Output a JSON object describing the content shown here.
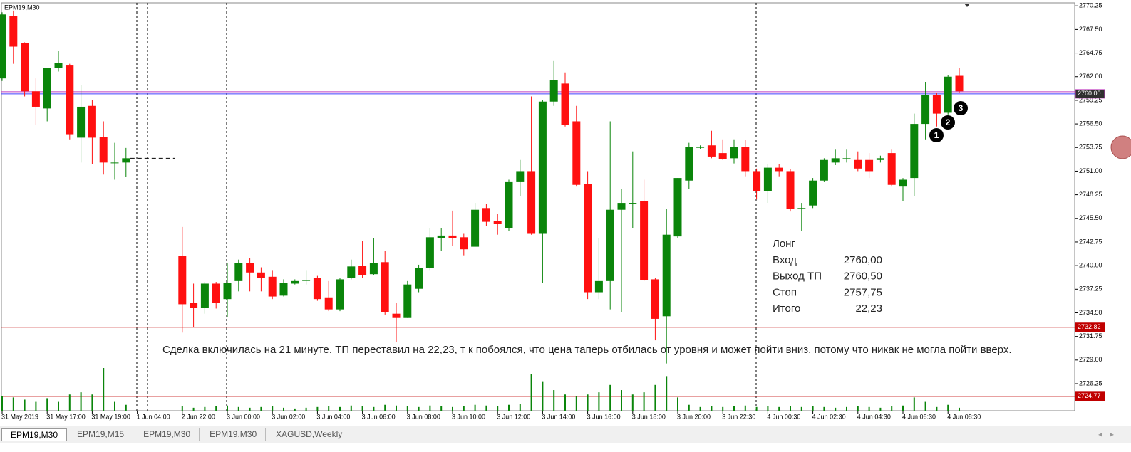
{
  "symbol": "EPM19,M30",
  "tabs": [
    "EPM19,M30",
    "EPM19,M15",
    "EPM19,M30",
    "EPM19,M30",
    "XAGUSD,Weekly"
  ],
  "trade_info": {
    "title": "Лонг",
    "rows": [
      [
        "Вход",
        "2760,00"
      ],
      [
        "Выход ТП",
        "2760,50"
      ],
      [
        "Стоп",
        "2757,75"
      ],
      [
        "Итого",
        "22,23"
      ]
    ]
  },
  "note": "Сделка включилась на 21 минуте. ТП переставил на 22,23, т к побоялся, что цена таперь отбилась от уровня и может пойти вниз, потому что никак не могла пойти вверх.",
  "markers": [
    "1",
    "2",
    "3"
  ],
  "chart_data": {
    "type": "candlestick",
    "up_color": "#0a850a",
    "down_color": "#ff1010",
    "categories": [
      "31 May 2019",
      null,
      null,
      null,
      "31 May 17:00",
      null,
      null,
      null,
      "31 May 19:00",
      null,
      null,
      null,
      "1 Jun 04:00",
      null,
      null,
      null,
      "2 Jun 22:00",
      null,
      null,
      null,
      "3 Jun 00:00",
      null,
      null,
      null,
      "3 Jun 02:00",
      null,
      null,
      null,
      "3 Jun 04:00",
      null,
      null,
      null,
      "3 Jun 06:00",
      null,
      null,
      null,
      "3 Jun 08:00",
      null,
      null,
      null,
      "3 Jun 10:00",
      null,
      null,
      null,
      "3 Jun 12:00",
      null,
      null,
      null,
      "3 Jun 14:00",
      null,
      null,
      null,
      "3 Jun 16:00",
      null,
      null,
      null,
      "3 Jun 18:00",
      null,
      null,
      null,
      "3 Jun 20:00",
      null,
      null,
      null,
      "3 Jun 22:30",
      null,
      null,
      null,
      "4 Jun 00:30",
      null,
      null,
      null,
      "4 Jun 02:30",
      null,
      null,
      null,
      "4 Jun 04:30",
      null,
      null,
      null,
      "4 Jun 06:30",
      null,
      null,
      null,
      "4 Jun 08:30",
      null
    ],
    "open": [
      2761.8,
      2769.1,
      2765.9,
      2760.3,
      2758.3,
      2763.0,
      2763.3,
      2754.9,
      2758.6,
      2755.0,
      2752.0,
      2752.0,
      null,
      null,
      null,
      null,
      2741.1,
      2735.7,
      2735.1,
      2737.9,
      2736.1,
      2738.2,
      2740.3,
      2739.2,
      2738.7,
      2736.5,
      2737.9,
      2738.3,
      2738.6,
      2736.3,
      2734.9,
      2738.6,
      2740.0,
      2739.0,
      2740.4,
      2734.4,
      2733.9,
      2737.3,
      2739.7,
      2743.2,
      2743.5,
      2743.3,
      2742.2,
      2746.7,
      2745.2,
      2744.4,
      2749.8,
      2751.0,
      2743.7,
      2759.1,
      2761.2,
      2756.8,
      2749.5,
      2736.9,
      2738.2,
      2746.5,
      2747.3,
      2747.5,
      2738.4,
      2734.1,
      2743.4,
      2749.9,
      2753.8,
      2754.0,
      2753.1,
      2752.5,
      2753.8,
      2751.0,
      2748.7,
      2751.4,
      2751.0,
      2746.6,
      2747.0,
      2749.9,
      2752.0,
      2752.5,
      2752.3,
      2752.3,
      2752.3,
      2753.1,
      2749.2,
      2750.2,
      2756.5,
      2759.9,
      2757.8,
      2762.1
    ],
    "high": [
      2769.5,
      2769.7,
      2766.0,
      2761.8,
      2763.0,
      2765.0,
      2763.5,
      2761.0,
      2759.3,
      2756.8,
      2754.3,
      2753.7,
      null,
      null,
      null,
      null,
      2744.5,
      2737.9,
      2738.1,
      2738.1,
      2740.3,
      2740.7,
      2740.9,
      2739.8,
      2739.4,
      2738.4,
      2738.4,
      2739.4,
      2738.8,
      2738.2,
      2738.6,
      2740.7,
      2742.9,
      2743.2,
      2741.7,
      2735.7,
      2738.2,
      2740.1,
      2744.4,
      2744.4,
      2746.4,
      2743.7,
      2747.3,
      2747.2,
      2746.0,
      2750.0,
      2752.3,
      2759.7,
      2759.3,
      2763.9,
      2762.5,
      2758.6,
      2751.0,
      2743.2,
      2756.8,
      2748.9,
      2753.3,
      2750.0,
      2738.6,
      2746.6,
      2750.2,
      2754.3,
      2754.0,
      2755.7,
      2754.7,
      2754.7,
      2754.6,
      2751.3,
      2751.8,
      2751.8,
      2751.2,
      2747.3,
      2750.2,
      2752.5,
      2753.5,
      2753.5,
      2753.3,
      2753.1,
      2752.8,
      2753.5,
      2750.2,
      2757.7,
      2761.4,
      2760.1,
      2762.2,
      2763.0
    ],
    "low": [
      2761.5,
      2763.5,
      2759.7,
      2756.4,
      2756.8,
      2762.6,
      2754.7,
      2752.0,
      2751.8,
      2750.6,
      2750.0,
      2750.3,
      null,
      null,
      null,
      null,
      2732.2,
      2732.8,
      2734.4,
      2735.0,
      2734.0,
      2737.0,
      2737.0,
      2737.0,
      2736.1,
      2736.4,
      2737.8,
      2737.8,
      2735.9,
      2734.7,
      2734.7,
      2738.4,
      2738.6,
      2738.9,
      2734.3,
      2731.1,
      2733.9,
      2736.9,
      2739.4,
      2741.7,
      2742.3,
      2741.2,
      2742.2,
      2744.6,
      2743.6,
      2744.0,
      2748.1,
      2743.6,
      2738.0,
      2758.6,
      2756.2,
      2749.2,
      2736.1,
      2736.1,
      2734.9,
      2734.6,
      2744.4,
      2738.2,
      2731.3,
      2728.6,
      2743.2,
      2748.9,
      2753.6,
      2752.5,
      2752.3,
      2751.9,
      2750.4,
      2747.7,
      2747.3,
      2750.4,
      2746.3,
      2744.0,
      2746.7,
      2749.8,
      2751.7,
      2752.0,
      2751.0,
      2750.2,
      2752.0,
      2749.2,
      2747.5,
      2748.1,
      2754.7,
      2756.2,
      2757.6,
      2760.1
    ],
    "close": [
      2769.25,
      2765.5,
      2760.3,
      2758.5,
      2763.0,
      2763.6,
      2755.3,
      2758.5,
      2754.9,
      2752.0,
      2752.0,
      2752.5,
      null,
      null,
      null,
      null,
      2735.5,
      2735.1,
      2737.9,
      2735.7,
      2738.0,
      2740.3,
      2739.2,
      2738.6,
      2736.4,
      2738.0,
      2738.2,
      2738.3,
      2736.1,
      2734.9,
      2738.4,
      2739.9,
      2738.9,
      2740.3,
      2734.6,
      2733.9,
      2737.8,
      2739.7,
      2743.3,
      2743.5,
      2743.2,
      2741.9,
      2746.5,
      2745.1,
      2744.9,
      2749.8,
      2751.0,
      2743.7,
      2759.1,
      2761.6,
      2756.4,
      2749.4,
      2736.9,
      2738.2,
      2746.5,
      2747.3,
      2747.3,
      2738.3,
      2733.8,
      2743.6,
      2750.2,
      2753.8,
      2753.8,
      2752.7,
      2752.4,
      2753.8,
      2751.0,
      2748.7,
      2751.4,
      2751.0,
      2746.6,
      2746.7,
      2749.9,
      2752.3,
      2752.5,
      2752.5,
      2751.3,
      2751.0,
      2752.5,
      2749.4,
      2750.0,
      2756.5,
      2759.9,
      2757.7,
      2762.0,
      2760.3
    ],
    "volumes": [
      20,
      18,
      15,
      12,
      17,
      12,
      22,
      25,
      22,
      58,
      12,
      8,
      null,
      null,
      null,
      null,
      6,
      4,
      5,
      6,
      7,
      5,
      4,
      5,
      6,
      4,
      3,
      4,
      5,
      6,
      5,
      7,
      6,
      5,
      8,
      7,
      6,
      5,
      7,
      6,
      5,
      6,
      8,
      7,
      6,
      8,
      9,
      50,
      40,
      28,
      22,
      20,
      22,
      25,
      35,
      28,
      22,
      25,
      35,
      47,
      18,
      8,
      5,
      6,
      5,
      6,
      7,
      5,
      6,
      5,
      6,
      5,
      6,
      5,
      4,
      5,
      6,
      5,
      4,
      6,
      7,
      18,
      12,
      5,
      8,
      4
    ],
    "ylim": [
      2723.1,
      2770.6
    ],
    "yticks": [
      2770.25,
      {
        "value": 2767.5,
        "label": "2767.50"
      },
      2764.75,
      {
        "value": 2762,
        "label": "2762.00"
      },
      2759.25,
      {
        "value": 2756.5,
        "label": "2756.50"
      },
      2753.75,
      {
        "value": 2751,
        "label": "2751.00"
      },
      2748.25,
      {
        "value": 2745.5,
        "label": "2745.50"
      },
      2742.75,
      {
        "value": 2740,
        "label": "2740.00"
      },
      2737.25,
      {
        "value": 2734.5,
        "label": "2734.50"
      },
      2731.75,
      {
        "value": 2729,
        "label": "2729.00"
      },
      2726.25
    ],
    "levels": [
      {
        "value": 2760,
        "label": "2760.00"
      },
      2732.82,
      2724.77
    ],
    "level_colors": [
      "#4040ff",
      "#c00000",
      "#c00000"
    ]
  }
}
